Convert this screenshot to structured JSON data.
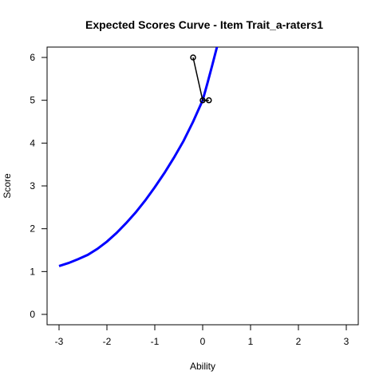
{
  "chart_data": {
    "type": "line",
    "title": "Expected Scores Curve - Item  Trait_a-raters1",
    "xlabel": "Ability",
    "ylabel": "Score",
    "xlim": [
      -3,
      3
    ],
    "ylim": [
      0,
      6
    ],
    "xticks": [
      -3,
      -2,
      -1,
      0,
      1,
      2,
      3
    ],
    "yticks": [
      0,
      1,
      2,
      3,
      4,
      5,
      6
    ],
    "grid": false,
    "legend": "none",
    "curve": {
      "color": "#0000ff",
      "x": [
        -3.0,
        -2.8,
        -2.6,
        -2.4,
        -2.2,
        -2.0,
        -1.8,
        -1.6,
        -1.4,
        -1.2,
        -1.0,
        -0.8,
        -0.6,
        -0.4,
        -0.2,
        0.0,
        0.1,
        0.2,
        0.3
      ],
      "y": [
        1.13,
        1.2,
        1.29,
        1.39,
        1.53,
        1.7,
        1.9,
        2.13,
        2.38,
        2.66,
        2.97,
        3.3,
        3.66,
        4.05,
        4.5,
        5.0,
        5.4,
        5.82,
        6.25
      ]
    },
    "observed": {
      "color": "#000000",
      "x": [
        -0.2,
        0.0,
        0.13
      ],
      "y": [
        6.0,
        5.0,
        5.0
      ]
    }
  }
}
